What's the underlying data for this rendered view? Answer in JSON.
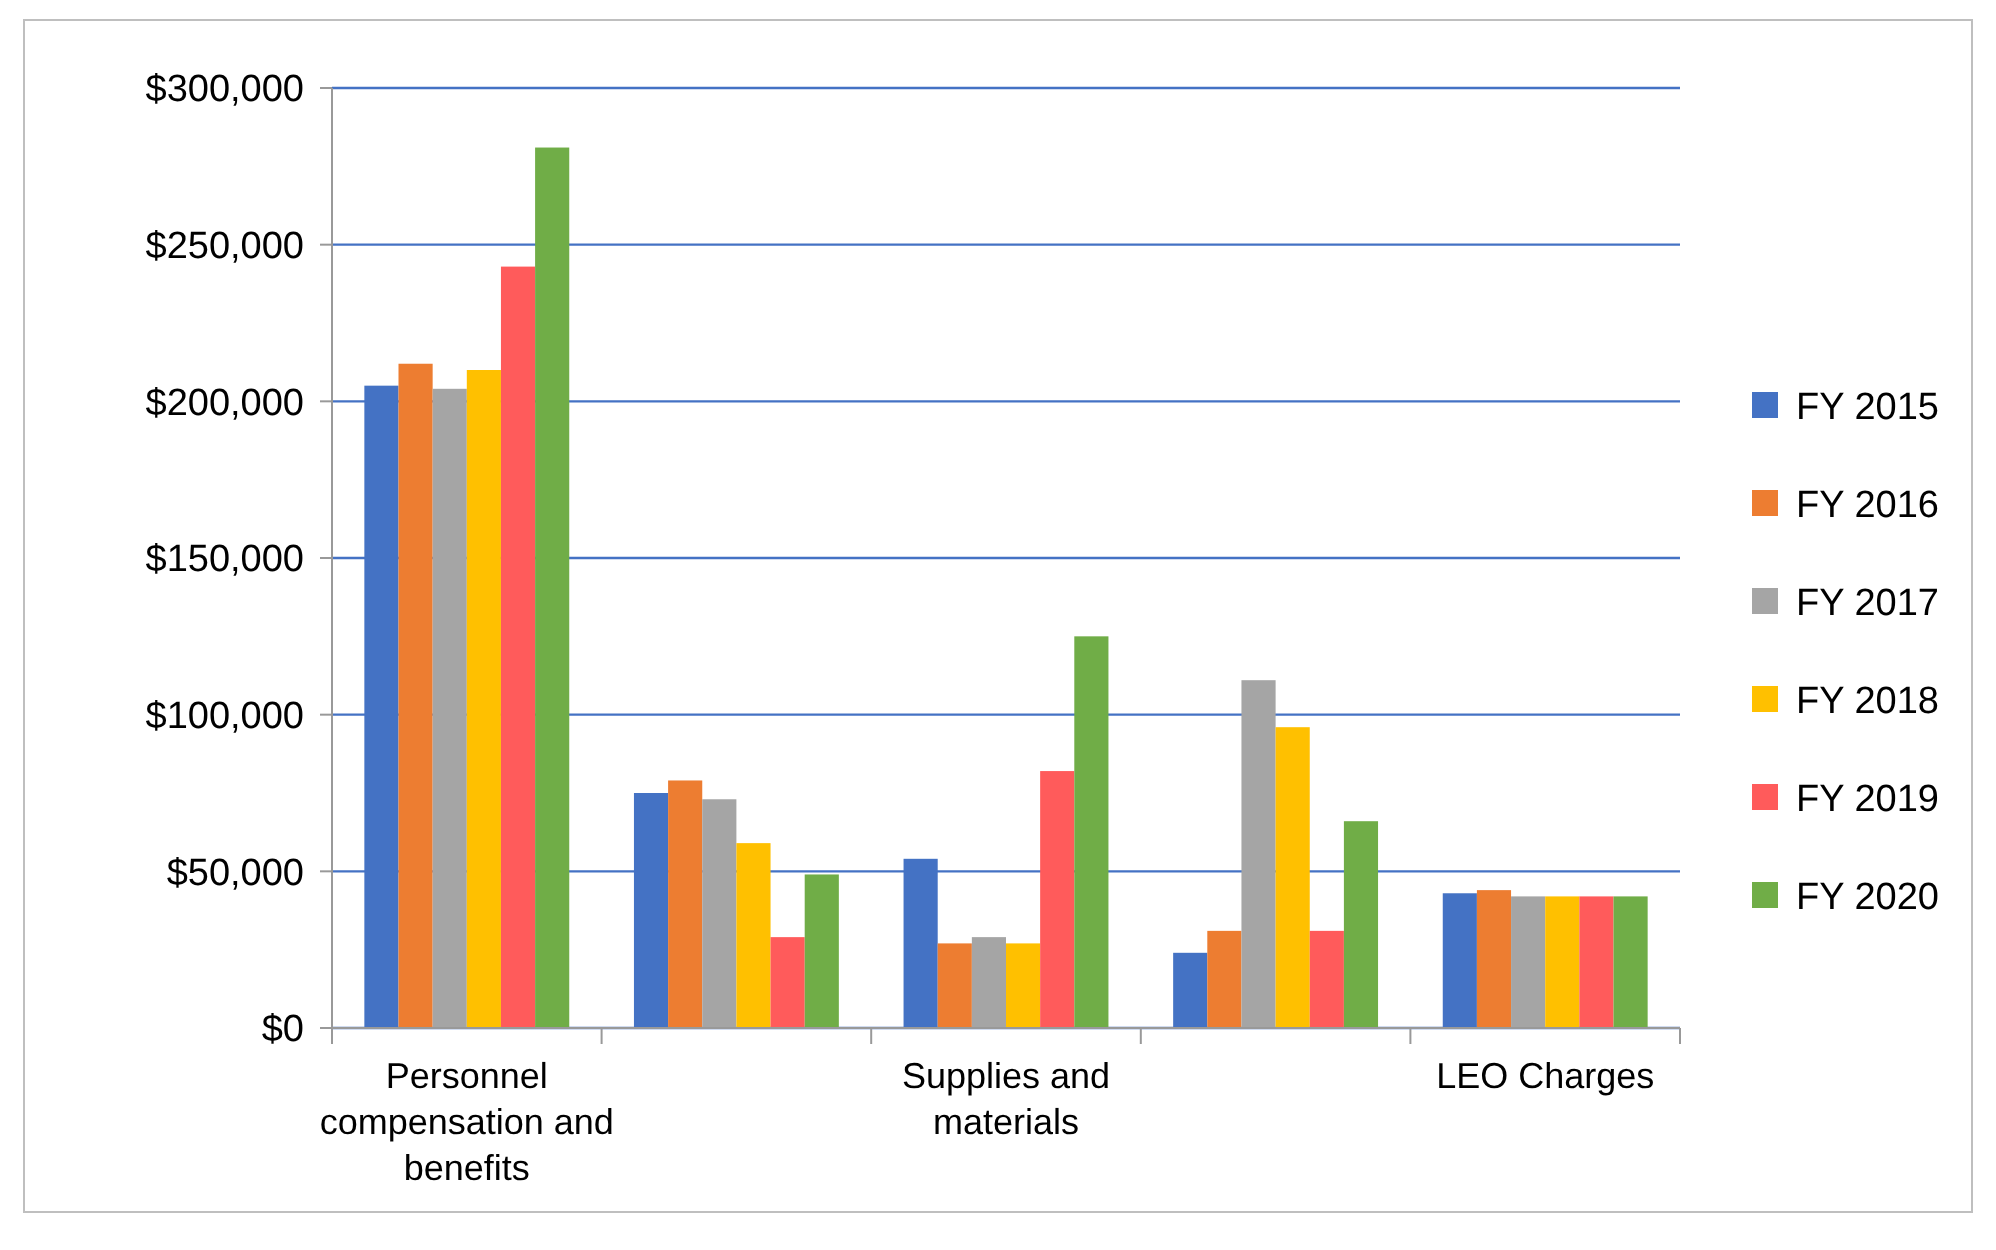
{
  "chart_data": {
    "type": "bar",
    "categories": [
      "Personnel compensation and benefits",
      null,
      "Supplies and materials",
      null,
      "LEO Charges"
    ],
    "series": [
      {
        "name": "FY 2015",
        "color": "#4472c4",
        "values": [
          205000,
          75000,
          54000,
          24000,
          43000
        ]
      },
      {
        "name": "FY 2016",
        "color": "#ed7d31",
        "values": [
          212000,
          79000,
          27000,
          31000,
          44000
        ]
      },
      {
        "name": "FY 2017",
        "color": "#a5a5a5",
        "values": [
          204000,
          73000,
          29000,
          111000,
          42000
        ]
      },
      {
        "name": "FY 2018",
        "color": "#ffc000",
        "values": [
          210000,
          59000,
          27000,
          96000,
          42000
        ]
      },
      {
        "name": "FY 2019",
        "color": "#ff5b5b",
        "values": [
          243000,
          29000,
          82000,
          31000,
          42000
        ]
      },
      {
        "name": "FY 2020",
        "color": "#70ad47",
        "values": [
          281000,
          49000,
          125000,
          66000,
          42000
        ]
      }
    ],
    "ylim": [
      0,
      300000
    ],
    "yticks": [
      {
        "value": 0,
        "label": "$0"
      },
      {
        "value": 50000,
        "label": "$50,000"
      },
      {
        "value": 100000,
        "label": "$100,000"
      },
      {
        "value": 150000,
        "label": "$150,000"
      },
      {
        "value": 200000,
        "label": "$200,000"
      },
      {
        "value": 250000,
        "label": "$250,000"
      },
      {
        "value": 300000,
        "label": "$300,000"
      }
    ],
    "grid": "y",
    "legend": "right"
  }
}
